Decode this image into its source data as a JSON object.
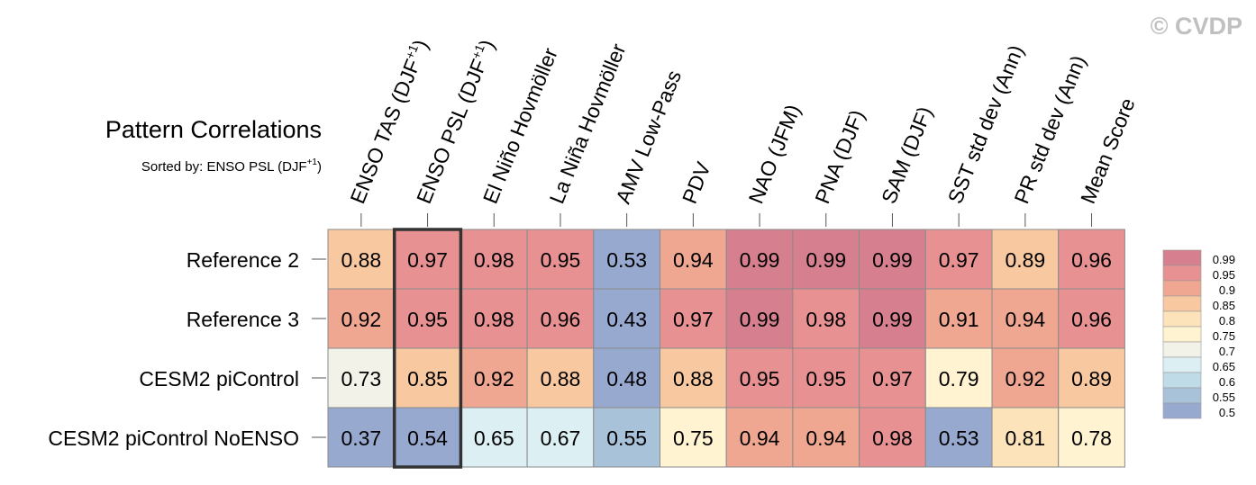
{
  "watermark": "© CVDP",
  "chart_data": {
    "type": "heatmap",
    "title": "Pattern Correlations",
    "subtitle": "Sorted by: ENSO PSL (DJF",
    "subtitle_sup": "+1",
    "subtitle_end": ")",
    "columns": [
      {
        "label": "ENSO TAS (DJF",
        "sup": "+1",
        "end": ")"
      },
      {
        "label": "ENSO PSL (DJF",
        "sup": "+1",
        "end": ")"
      },
      {
        "label": "El Niño Hovmöller"
      },
      {
        "label": "La Niña Hovmöller"
      },
      {
        "label": "AMV Low-Pass"
      },
      {
        "label": "PDV"
      },
      {
        "label": "NAO (JFM)"
      },
      {
        "label": "PNA (DJF)"
      },
      {
        "label": "SAM (DJF)"
      },
      {
        "label": "SST std dev (Ann)"
      },
      {
        "label": "PR std dev (Ann)"
      },
      {
        "label": "Mean Score"
      }
    ],
    "rows": [
      "Reference 2",
      "Reference 3",
      "CESM2 piControl",
      "CESM2 piControl NoENSO"
    ],
    "values": [
      [
        "0.88",
        "0.97",
        "0.98",
        "0.95",
        "0.53",
        "0.94",
        "0.99",
        "0.99",
        "0.99",
        "0.97",
        "0.89",
        "0.96"
      ],
      [
        "0.92",
        "0.95",
        "0.98",
        "0.96",
        "0.43",
        "0.97",
        "0.99",
        "0.98",
        "0.99",
        "0.91",
        "0.94",
        "0.96"
      ],
      [
        "0.73",
        "0.85",
        "0.92",
        "0.88",
        "0.48",
        "0.88",
        "0.95",
        "0.95",
        "0.97",
        "0.79",
        "0.92",
        "0.89"
      ],
      [
        "0.37",
        "0.54",
        "0.65",
        "0.67",
        "0.55",
        "0.75",
        "0.94",
        "0.94",
        "0.98",
        "0.53",
        "0.81",
        "0.78"
      ]
    ],
    "highlighted_column": 1,
    "colorbar": {
      "ticks": [
        "0.99",
        "0.95",
        "0.9",
        "0.85",
        "0.8",
        "0.75",
        "0.7",
        "0.65",
        "0.6",
        "0.55",
        "0.5"
      ],
      "tick_values": [
        0.99,
        0.95,
        0.9,
        0.85,
        0.8,
        0.75,
        0.7,
        0.65,
        0.6,
        0.55,
        0.5
      ],
      "colors": [
        "#d67f8e",
        "#e89192",
        "#f0a792",
        "#f8c8a0",
        "#fce3ba",
        "#fff3d1",
        "#f2f2e8",
        "#dceff3",
        "#c0dbe8",
        "#a8c2da",
        "#98a9d0"
      ]
    },
    "colors": {
      "cell_border": "#8a8a8a",
      "highlight_border": "#333333"
    }
  }
}
